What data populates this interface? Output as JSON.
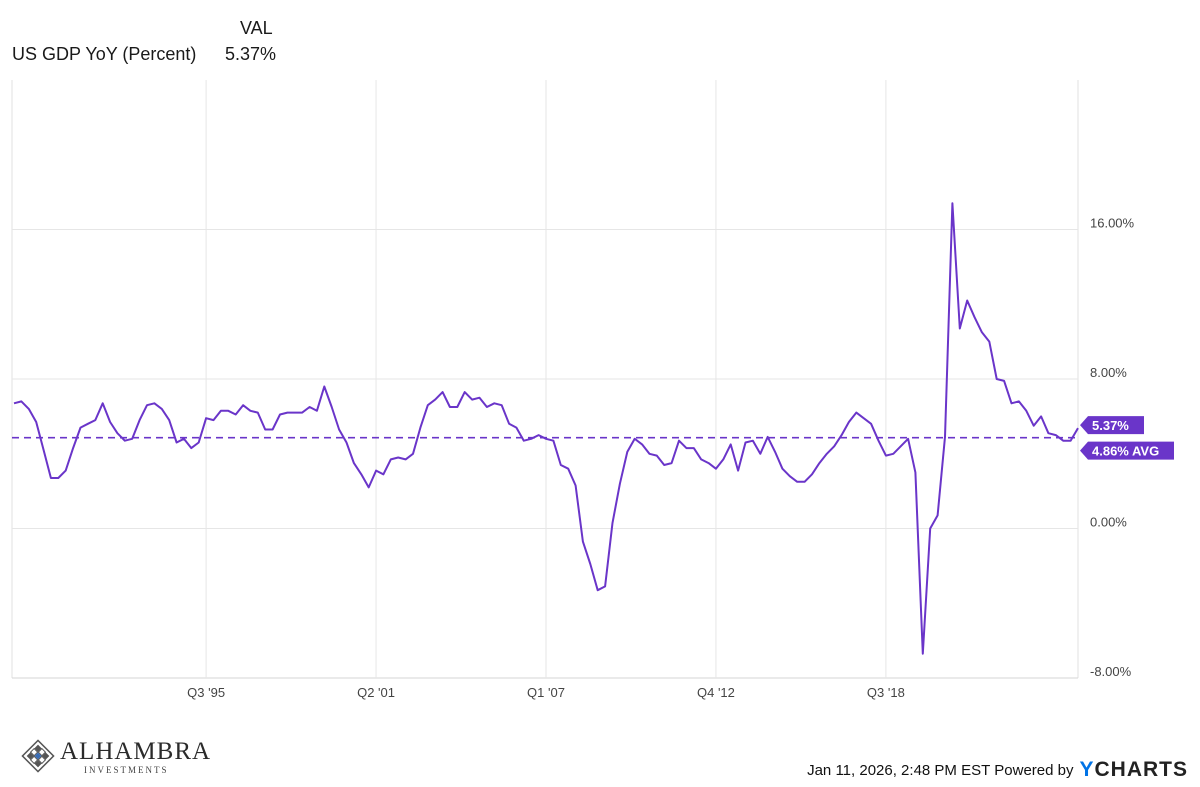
{
  "legend": {
    "column_header": "VAL",
    "series_name": "US GDP YoY (Percent)",
    "series_value": "5.37%"
  },
  "chart_data": {
    "type": "line",
    "ylim": [
      -8,
      24
    ],
    "y_ticks": [
      "16.00%",
      "8.00%",
      "0.00%",
      "-8.00%"
    ],
    "y_tick_values": [
      16,
      8,
      0,
      -8
    ],
    "x_ticks": [
      "Q3 '95",
      "Q2 '01",
      "Q1 '07",
      "Q4 '12",
      "Q3 '18"
    ],
    "x_tick_index": [
      26,
      49,
      72,
      95,
      118
    ],
    "grid": true,
    "average": 4.86,
    "last_value_label": "5.37%",
    "average_label": "4.86% AVG",
    "line_color": "#6a35c9",
    "series": [
      {
        "name": "US GDP YoY (Percent)",
        "x_start": "1989 Q3",
        "frequency": "quarterly",
        "values": [
          6.7,
          6.8,
          6.4,
          5.7,
          4.2,
          2.7,
          2.7,
          3.1,
          4.3,
          5.4,
          5.6,
          5.8,
          6.7,
          5.7,
          5.1,
          4.7,
          4.8,
          5.8,
          6.6,
          6.7,
          6.4,
          5.8,
          4.6,
          4.8,
          4.3,
          4.6,
          5.9,
          5.8,
          6.3,
          6.3,
          6.1,
          6.6,
          6.3,
          6.2,
          5.3,
          5.3,
          6.1,
          6.2,
          6.2,
          6.2,
          6.5,
          6.3,
          7.6,
          6.5,
          5.3,
          4.6,
          3.5,
          2.9,
          2.2,
          3.1,
          2.9,
          3.7,
          3.8,
          3.7,
          4.0,
          5.4,
          6.6,
          6.9,
          7.3,
          6.5,
          6.5,
          7.3,
          6.9,
          7.0,
          6.5,
          6.7,
          6.6,
          5.6,
          5.4,
          4.7,
          4.8,
          5.0,
          4.8,
          4.7,
          3.4,
          3.2,
          2.3,
          -0.7,
          -1.9,
          -3.3,
          -3.1,
          0.3,
          2.4,
          4.1,
          4.8,
          4.5,
          4.0,
          3.9,
          3.4,
          3.5,
          4.7,
          4.3,
          4.3,
          3.7,
          3.5,
          3.2,
          3.7,
          4.5,
          3.1,
          4.6,
          4.7,
          4.0,
          4.9,
          4.1,
          3.2,
          2.8,
          2.5,
          2.5,
          2.9,
          3.5,
          4.0,
          4.4,
          5.0,
          5.7,
          6.2,
          5.9,
          5.6,
          4.7,
          3.9,
          4.0,
          4.4,
          4.8,
          3.0,
          -6.7,
          0.0,
          0.7,
          4.9,
          17.4,
          10.7,
          12.2,
          11.3,
          10.5,
          10.0,
          8.0,
          7.9,
          6.7,
          6.8,
          6.3,
          5.5,
          6.0,
          5.1,
          5.0,
          4.7,
          4.7,
          5.37
        ]
      }
    ]
  },
  "branding": {
    "logo_name": "ALHAMBRA",
    "logo_sub": "INVESTMENTS",
    "timestamp": "Jan 11, 2026, 2:48 PM EST",
    "powered_by": "Powered by",
    "ycharts_y": "Y",
    "ycharts_rest": "CHARTS"
  }
}
